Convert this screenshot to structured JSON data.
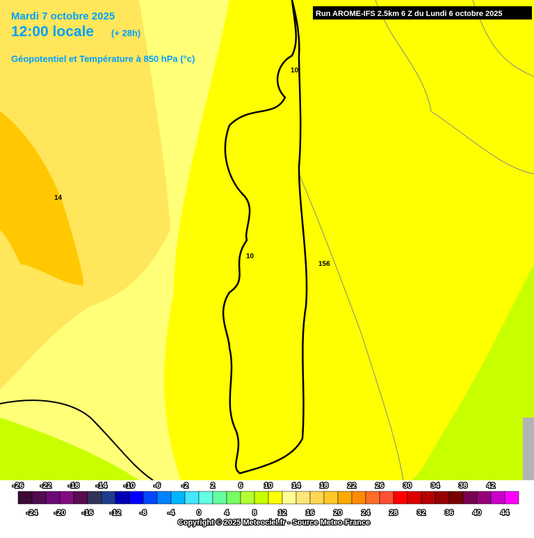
{
  "header": {
    "date": "Mardi 7 octobre 2025",
    "time": "12:00 locale",
    "lead": "(+ 28h)",
    "parameter": "Géopotentiel et Température à 850 hPa (°c)",
    "run": "Run AROME-IFS 2.5km 6 Z du Lundi 6 octobre 2025"
  },
  "contour_labels": [
    "10",
    "14",
    "10",
    "156"
  ],
  "scale": {
    "colors": [
      "#3c0a32",
      "#500a50",
      "#6a0a78",
      "#820a82",
      "#5a0a50",
      "#32325a",
      "#1e3c8c",
      "#0000b4",
      "#0000ff",
      "#0046ff",
      "#0082ff",
      "#00b4ff",
      "#46e6ff",
      "#64ffe6",
      "#64ffa0",
      "#78ff64",
      "#b4ff32",
      "#c8ff00",
      "#ffff00",
      "#ffff96",
      "#ffe678",
      "#ffd750",
      "#ffc828",
      "#ffaa00",
      "#ff8c00",
      "#ff6e28",
      "#ff5032",
      "#ff0000",
      "#dc0000",
      "#b40000",
      "#960000",
      "#780000",
      "#780050",
      "#960078",
      "#c800c8",
      "#ff00ff"
    ],
    "top_labels": [
      -26,
      -22,
      -18,
      -14,
      -10,
      -6,
      -2,
      2,
      6,
      10,
      14,
      18,
      22,
      26,
      30,
      34,
      38,
      42
    ],
    "bottom_labels": [
      -24,
      -20,
      -16,
      -12,
      -8,
      -4,
      0,
      4,
      8,
      12,
      16,
      20,
      24,
      28,
      32,
      36,
      40,
      44
    ]
  },
  "footer": "Copyright © 2025 Meteociel.fr - Source Meteo-France"
}
